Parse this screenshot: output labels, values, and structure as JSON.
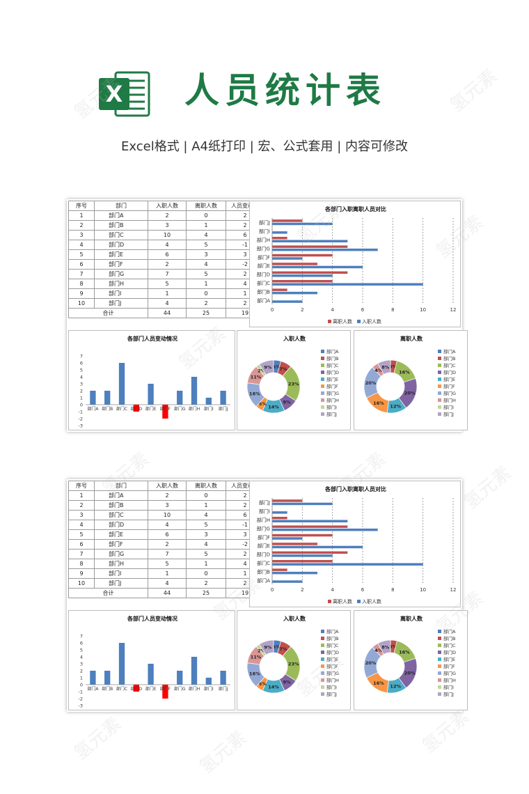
{
  "header": {
    "title": "人员统计表",
    "subtitle": "Excel格式 |  A4纸打印 | 宏、公式套用 | 内容可修改",
    "logo_letter": "X"
  },
  "watermark": "氢元素",
  "colors": {
    "accent": "#1f7a45",
    "blue": "#4e7fbe",
    "red": "#c0504d",
    "negative": "#ff0000"
  },
  "table": {
    "headers": [
      "序号",
      "部门",
      "入职人数",
      "离职人数",
      "人员变动数"
    ],
    "rows": [
      [
        "1",
        "部门A",
        "2",
        "0",
        "2"
      ],
      [
        "2",
        "部门B",
        "3",
        "1",
        "2"
      ],
      [
        "3",
        "部门C",
        "10",
        "4",
        "6"
      ],
      [
        "4",
        "部门D",
        "4",
        "5",
        "-1"
      ],
      [
        "5",
        "部门E",
        "6",
        "3",
        "3"
      ],
      [
        "6",
        "部门F",
        "2",
        "4",
        "-2"
      ],
      [
        "7",
        "部门G",
        "7",
        "5",
        "2"
      ],
      [
        "8",
        "部门H",
        "5",
        "1",
        "4"
      ],
      [
        "9",
        "部门I",
        "1",
        "0",
        "1"
      ],
      [
        "10",
        "部门J",
        "4",
        "2",
        "2"
      ]
    ],
    "total": [
      "合计",
      "44",
      "25",
      "19"
    ]
  },
  "chart_data": [
    {
      "type": "bar",
      "orientation": "horizontal",
      "title": "各部门入职离职人员对比",
      "categories": [
        "部门A",
        "部门B",
        "部门C",
        "部门D",
        "部门E",
        "部门F",
        "部门G",
        "部门H",
        "部门I",
        "部门J"
      ],
      "series": [
        {
          "name": "离职人数",
          "color": "#c0504d",
          "values": [
            0,
            1,
            4,
            5,
            3,
            4,
            5,
            1,
            0,
            2
          ]
        },
        {
          "name": "入职人数",
          "color": "#4e7fbe",
          "values": [
            2,
            3,
            10,
            4,
            6,
            2,
            7,
            5,
            1,
            4
          ]
        }
      ],
      "xlim": [
        0,
        12
      ],
      "xticks": [
        "0",
        "2",
        "4",
        "6",
        "8",
        "10",
        "12"
      ],
      "grid": "vertical-dashed",
      "legend": "bottom"
    },
    {
      "type": "bar",
      "title": "各部门人员变动情况",
      "categories": [
        "部门A",
        "部门B",
        "部门C",
        "部门D",
        "部门E",
        "部门F",
        "部门G",
        "部门H",
        "部门I",
        "部门J"
      ],
      "values": [
        2,
        2,
        6,
        -1,
        3,
        -2,
        2,
        4,
        1,
        2
      ],
      "ylim": [
        -3,
        7
      ],
      "yticks": [
        "7",
        "6",
        "5",
        "4",
        "3",
        "2",
        "1",
        "0",
        "-1",
        "-2",
        "-3"
      ],
      "positive_color": "#4e7fbe",
      "negative_color": "#ff0000"
    },
    {
      "type": "pie",
      "style": "donut",
      "title": "入职人数",
      "labels": [
        "部门A",
        "部门B",
        "部门C",
        "部门D",
        "部门E",
        "部门F",
        "部门G",
        "部门H",
        "部门I",
        "部门J"
      ],
      "values": [
        2,
        3,
        10,
        4,
        6,
        2,
        7,
        5,
        1,
        4
      ],
      "percent_labels": [
        "5%",
        "7%",
        "23%",
        "9%",
        "14%",
        "5%",
        "16%",
        "11%",
        "2%",
        "9%"
      ],
      "colors": [
        "#4e7fbe",
        "#c0504d",
        "#9bbb59",
        "#8064a2",
        "#4bacc6",
        "#f79646",
        "#93a9d5",
        "#d99694",
        "#c3d69b",
        "#b3a2c7"
      ],
      "legend": "right"
    },
    {
      "type": "pie",
      "style": "donut",
      "title": "离职人数",
      "labels": [
        "部门A",
        "部门B",
        "部门C",
        "部门D",
        "部门E",
        "部门F",
        "部门G",
        "部门H",
        "部门I",
        "部门J"
      ],
      "values": [
        0,
        1,
        4,
        5,
        3,
        4,
        5,
        1,
        0,
        2
      ],
      "percent_labels": [
        "",
        "4%",
        "16%",
        "20%",
        "12%",
        "16%",
        "20%",
        "4%",
        "",
        "8%"
      ],
      "colors": [
        "#4e7fbe",
        "#c0504d",
        "#9bbb59",
        "#8064a2",
        "#4bacc6",
        "#f79646",
        "#93a9d5",
        "#d99694",
        "#c3d69b",
        "#b3a2c7"
      ],
      "legend": "right"
    }
  ]
}
